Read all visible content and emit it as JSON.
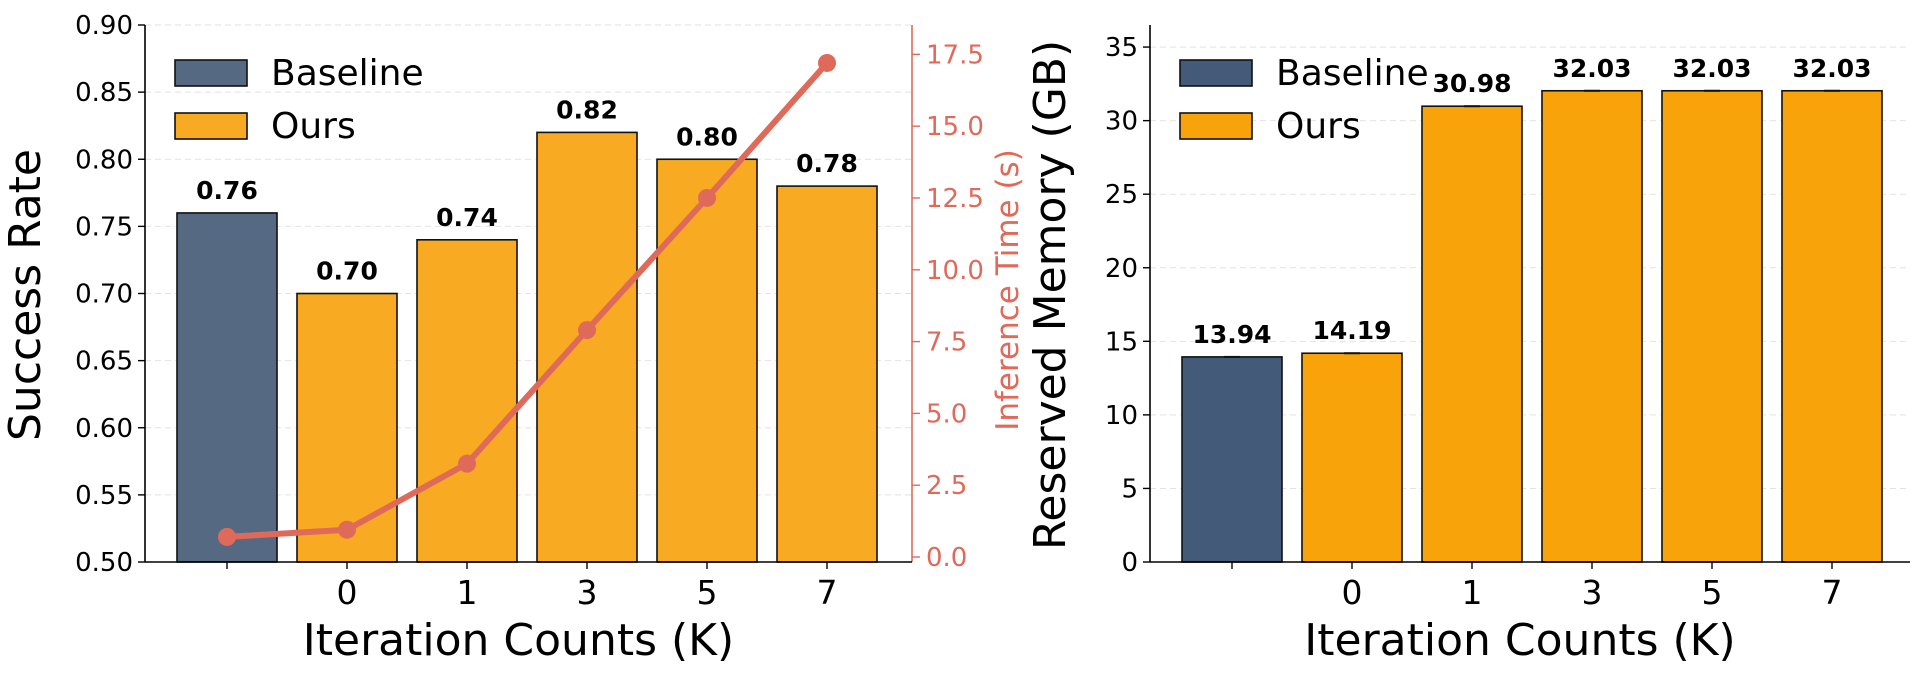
{
  "chart_data": [
    {
      "type": "bar",
      "categories": [
        "",
        "0",
        "1",
        "3",
        "5",
        "7"
      ],
      "xlabel": "Iteration Counts (K)",
      "ylabel": "Success Rate",
      "ylim": [
        0.5,
        0.9
      ],
      "yticks": [
        "0.50",
        "0.55",
        "0.60",
        "0.65",
        "0.70",
        "0.75",
        "0.80",
        "0.85",
        "0.90"
      ],
      "grid": "horizontal dashed",
      "series": [
        {
          "name": "Baseline",
          "color": "#556a82",
          "values": [
            0.76,
            null,
            null,
            null,
            null,
            null
          ],
          "labels": [
            "0.76",
            "",
            "",
            "",
            "",
            ""
          ]
        },
        {
          "name": "Ours",
          "color": "#f7aa22",
          "values": [
            null,
            0.7,
            0.74,
            0.82,
            0.8,
            0.78
          ],
          "labels": [
            "",
            "0.70",
            "0.74",
            "0.82",
            "0.80",
            "0.78"
          ]
        }
      ],
      "secondary_axis": {
        "type": "line",
        "ylabel": "Inference Time (s)",
        "ylim": [
          0,
          18
        ],
        "yticks": [
          "0.0",
          "2.5",
          "5.0",
          "7.5",
          "10.0",
          "12.5",
          "15.0",
          "17.5"
        ],
        "color": "#e06a5a",
        "values": [
          0.7,
          0.95,
          3.25,
          7.9,
          12.5,
          17.2
        ]
      },
      "legend": "upper-left"
    },
    {
      "type": "bar",
      "categories": [
        "",
        "0",
        "1",
        "3",
        "5",
        "7"
      ],
      "xlabel": "Iteration Counts (K)",
      "ylabel": "Reserved Memory (GB)",
      "ylim": [
        0,
        36.5
      ],
      "yticks": [
        "0",
        "5",
        "10",
        "15",
        "20",
        "25",
        "30",
        "35"
      ],
      "grid": "horizontal dashed",
      "series": [
        {
          "name": "Baseline",
          "color": "#435a78",
          "values": [
            13.94,
            null,
            null,
            null,
            null,
            null
          ],
          "labels": [
            "13.94",
            "",
            "",
            "",
            "",
            ""
          ]
        },
        {
          "name": "Ours",
          "color": "#f8a30a",
          "values": [
            null,
            14.19,
            30.98,
            32.03,
            32.03,
            32.03
          ],
          "labels": [
            "",
            "14.19",
            "30.98",
            "32.03",
            "32.03",
            "32.03"
          ]
        }
      ],
      "legend": "upper-left"
    }
  ]
}
